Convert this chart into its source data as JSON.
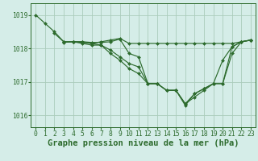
{
  "background_color": "#d5ede8",
  "grid_color": "#aaccbb",
  "line_color": "#2d6b2d",
  "marker_color": "#2d6b2d",
  "xlabel": "Graphe pression niveau de la mer (hPa)",
  "ylim": [
    1015.65,
    1019.35
  ],
  "xlim": [
    -0.5,
    23.5
  ],
  "yticks": [
    1016,
    1017,
    1018,
    1019
  ],
  "xticks": [
    0,
    1,
    2,
    3,
    4,
    5,
    6,
    7,
    8,
    9,
    10,
    11,
    12,
    13,
    14,
    15,
    16,
    17,
    18,
    19,
    20,
    21,
    22,
    23
  ],
  "series": [
    {
      "x": [
        0,
        1,
        2,
        3,
        4,
        5,
        6,
        7,
        8,
        9,
        10,
        11,
        12,
        13,
        14,
        15,
        16,
        17,
        18,
        19,
        20,
        21,
        22,
        23
      ],
      "y": [
        1019.0,
        1018.75,
        1018.5,
        1018.2,
        1018.2,
        1018.2,
        1018.15,
        1018.2,
        1018.25,
        1018.3,
        1018.15,
        1018.15,
        1018.15,
        1018.15,
        1018.15,
        1018.15,
        1018.15,
        1018.15,
        1018.15,
        1018.15,
        1018.15,
        1018.15,
        1018.2,
        1018.25
      ]
    },
    {
      "x": [
        2,
        3,
        4,
        5,
        6,
        7,
        8,
        9,
        10,
        11,
        12,
        13,
        14,
        15,
        16,
        17,
        18,
        19,
        20,
        21,
        22,
        23
      ],
      "y": [
        1018.45,
        1018.2,
        1018.2,
        1018.2,
        1018.18,
        1018.18,
        1018.2,
        1018.28,
        1017.85,
        1017.75,
        1016.95,
        1016.95,
        1016.75,
        1016.75,
        1016.35,
        1016.65,
        1016.8,
        1016.95,
        1017.65,
        1018.05,
        1018.2,
        1018.25
      ]
    },
    {
      "x": [
        3,
        4,
        5,
        6,
        7,
        8,
        9,
        10,
        11,
        12,
        13,
        14,
        15,
        16,
        17,
        18,
        19,
        20,
        21,
        22,
        23
      ],
      "y": [
        1018.18,
        1018.2,
        1018.18,
        1018.15,
        1018.1,
        1017.95,
        1017.75,
        1017.55,
        1017.45,
        1016.95,
        1016.95,
        1016.75,
        1016.75,
        1016.35,
        1016.55,
        1016.75,
        1016.95,
        1016.95,
        1018.05,
        1018.2,
        1018.25
      ]
    },
    {
      "x": [
        4,
        5,
        6,
        7,
        8,
        9,
        10,
        11,
        12,
        13,
        14,
        15,
        16,
        17,
        18,
        19,
        20,
        21,
        22,
        23
      ],
      "y": [
        1018.2,
        1018.15,
        1018.1,
        1018.1,
        1017.85,
        1017.65,
        1017.4,
        1017.25,
        1016.95,
        1016.95,
        1016.75,
        1016.75,
        1016.3,
        1016.65,
        1016.8,
        1016.95,
        1016.95,
        1017.85,
        1018.2,
        1018.25
      ]
    }
  ],
  "title_fontsize": 7.5,
  "tick_fontsize": 5.8
}
